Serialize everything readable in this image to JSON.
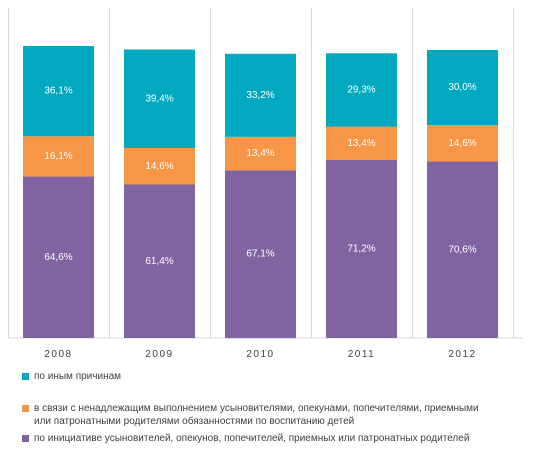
{
  "chart_data": {
    "type": "bar",
    "stacked": true,
    "categories": [
      "2008",
      "2009",
      "2010",
      "2011",
      "2012"
    ],
    "series": [
      {
        "name": "по инициативе усыновителей, опекунов, попечителей, приемных или патронатных родителей",
        "color": "#8064a2",
        "values": [
          64.6,
          61.4,
          67.1,
          71.2,
          70.6
        ],
        "labels": [
          "64,6%",
          "61,4%",
          "67,1%",
          "71,2%",
          "70,6%"
        ]
      },
      {
        "name": "в связи с ненадлежащим выполнением усыновителями, опекунами, попечителями, приемными или  патронатными родителями обязанностями по воспитанию детей",
        "color": "#f79646",
        "values": [
          16.1,
          14.6,
          13.4,
          13.4,
          14.6
        ],
        "labels": [
          "16,1%",
          "14,6%",
          "13,4%",
          "13,4%",
          "14,6%"
        ]
      },
      {
        "name": "по иным  причинам",
        "color": "#00a8c0",
        "values": [
          36.1,
          39.4,
          33.2,
          29.3,
          30.0
        ],
        "labels": [
          "36,1%",
          "39,4%",
          "33,2%",
          "29,3%",
          "30,0%"
        ]
      }
    ],
    "gridlines": "vertical separators between categories",
    "legend_position": "bottom"
  },
  "legend": [
    {
      "text": "по иным  причинам",
      "color": "#00a8c0"
    },
    {
      "text": "в связи с ненадлежащим выполнением усыновителями, опекунами, попечителями, приемными или  патронатными родителями обязанностями по воспитанию детей",
      "color": "#f79646"
    },
    {
      "text": "по инициативе усыновителей, опекунов, попечителей, приемных или патронатных родителей",
      "color": "#8064a2"
    }
  ]
}
